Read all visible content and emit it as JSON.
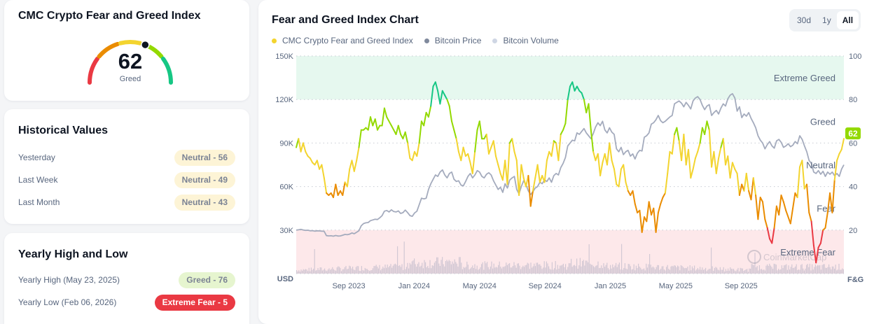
{
  "index_card": {
    "title": "CMC Crypto Fear and Greed Index",
    "value": "62",
    "value_num": 62,
    "label": "Greed",
    "gauge_colors": [
      "#ea3943",
      "#ea8c00",
      "#f3d42f",
      "#93d900",
      "#16c784"
    ]
  },
  "historical": {
    "title": "Historical Values",
    "rows": [
      {
        "label": "Yesterday",
        "badge": "Neutral - 56",
        "class": "neutral"
      },
      {
        "label": "Last Week",
        "badge": "Neutral - 49",
        "class": "neutral"
      },
      {
        "label": "Last Month",
        "badge": "Neutral - 43",
        "class": "neutral"
      }
    ]
  },
  "yearly": {
    "title": "Yearly High and Low",
    "rows": [
      {
        "label": "Yearly High",
        "date": "(May 23, 2025)",
        "badge": "Greed - 76",
        "class": "greed"
      },
      {
        "label": "Yearly Low",
        "date": "(Feb 06, 2026)",
        "badge": "Extreme Fear - 5",
        "class": "xfear"
      }
    ]
  },
  "chart_panel": {
    "title": "Fear and Greed Index Chart",
    "legend": [
      {
        "label": "CMC Crypto Fear and Greed Index",
        "color": "#f3d42f"
      },
      {
        "label": "Bitcoin Price",
        "color": "#808a9d"
      },
      {
        "label": "Bitcoin Volume",
        "color": "#cfd6e4"
      }
    ],
    "ranges": [
      {
        "label": "30d",
        "active": false
      },
      {
        "label": "1y",
        "active": false
      },
      {
        "label": "All",
        "active": true
      }
    ],
    "watermark": "CoinMarketCap"
  },
  "chart_data": {
    "type": "line",
    "title": "Fear and Greed Index Chart",
    "x_start": "2023-06",
    "x_end": "2026-02",
    "x_ticks": [
      "Sep 2023",
      "Jan 2024",
      "May 2024",
      "Sep 2024",
      "Jan 2025",
      "May 2025",
      "Sep 2025"
    ],
    "y_left": {
      "label": "USD",
      "ticks": [
        "150K",
        "120K",
        "90K",
        "60K",
        "30K"
      ],
      "range": [
        0,
        150000
      ]
    },
    "y_right": {
      "label": "F&G",
      "ticks": [
        "100",
        "80",
        "60",
        "40",
        "20"
      ],
      "range": [
        0,
        100
      ]
    },
    "zones": [
      {
        "label": "Extreme Greed",
        "from": 80,
        "to": 100,
        "color": "#e6f8ef"
      },
      {
        "label": "Greed",
        "from": 60,
        "to": 80
      },
      {
        "label": "Neutral",
        "from": 40,
        "to": 60
      },
      {
        "label": "Fear",
        "from": 20,
        "to": 40
      },
      {
        "label": "Extreme Fear",
        "from": 0,
        "to": 20,
        "color": "#fde8ea"
      }
    ],
    "current_badge": "62",
    "grid": true,
    "legend_position": "top-left",
    "series": [
      {
        "name": "CMC Crypto Fear and Greed Index",
        "axis": "right",
        "values": [
          58,
          62,
          56,
          60,
          56,
          54,
          53,
          51,
          50,
          52,
          48,
          50,
          44,
          37,
          36,
          37,
          35,
          41,
          36,
          38,
          36,
          42,
          40,
          48,
          52,
          47,
          52,
          58,
          66,
          66,
          67,
          66,
          72,
          68,
          71,
          66,
          68,
          68,
          76,
          72,
          70,
          68,
          66,
          64,
          68,
          64,
          62,
          65,
          60,
          53,
          52,
          56,
          54,
          60,
          70,
          68,
          74,
          72,
          77,
          86,
          88,
          84,
          78,
          84,
          82,
          80,
          77,
          70,
          66,
          62,
          56,
          52,
          58,
          54,
          55,
          51,
          46,
          56,
          66,
          70,
          62,
          62,
          64,
          55,
          58,
          61,
          54,
          50,
          46,
          43,
          52,
          41,
          60,
          62,
          56,
          52,
          36,
          50,
          44,
          40,
          45,
          31,
          38,
          44,
          50,
          42,
          45,
          42,
          52,
          56,
          54,
          61,
          60,
          52,
          64,
          66,
          69,
          80,
          86,
          88,
          84,
          86,
          84,
          83,
          80,
          74,
          78,
          66,
          56,
          52,
          55,
          45,
          51,
          55,
          50,
          60,
          52,
          48,
          41,
          40,
          48,
          50,
          42,
          38,
          36,
          38,
          32,
          28,
          29,
          19,
          26,
          24,
          33,
          27,
          30,
          19,
          28,
          32,
          35,
          37,
          46,
          56,
          55,
          64,
          67,
          61,
          52,
          64,
          50,
          57,
          44,
          48,
          53,
          56,
          60,
          67,
          64,
          70,
          66,
          49,
          56,
          46,
          53,
          58,
          62,
          50,
          54,
          44,
          51,
          48,
          46,
          36,
          41,
          38,
          46,
          38,
          34,
          44,
          36,
          25,
          35,
          33,
          25,
          21,
          16,
          14,
          21,
          31,
          27,
          36,
          33,
          29,
          26,
          23,
          30,
          37,
          35,
          49,
          52,
          39,
          41,
          28,
          24,
          13,
          5,
          12,
          14,
          20,
          21,
          28,
          37,
          28,
          43,
          52,
          55,
          57,
          62
        ]
      },
      {
        "name": "Bitcoin Price",
        "axis": "left",
        "values": [
          30000,
          30200,
          30500,
          30100,
          29800,
          29900,
          29500,
          29600,
          29300,
          29500,
          29400,
          29300,
          29200,
          26200,
          26000,
          26100,
          25800,
          26300,
          25900,
          26000,
          26500,
          27000,
          26800,
          27200,
          28000,
          27500,
          28500,
          29500,
          33000,
          34500,
          35000,
          35200,
          36500,
          37000,
          37500,
          37300,
          38500,
          40000,
          43000,
          43500,
          42500,
          44000,
          42800,
          42500,
          43200,
          41500,
          42000,
          43800,
          42000,
          40000,
          39500,
          41800,
          43000,
          47500,
          52000,
          51500,
          52000,
          58000,
          62000,
          65000,
          68000,
          67000,
          70000,
          71500,
          68000,
          66000,
          69000,
          70000,
          65000,
          63500,
          64000,
          61000,
          60500,
          63500,
          67000,
          69000,
          66000,
          68000,
          71000,
          70000,
          67000,
          66000,
          68500,
          69500,
          68000,
          64000,
          61000,
          58000,
          59500,
          56000,
          62000,
          59000,
          64500,
          66000,
          67000,
          58000,
          55000,
          60000,
          64000,
          61500,
          57000,
          54500,
          56500,
          59000,
          60000,
          63000,
          62000,
          64500,
          63500,
          66000,
          63000,
          67500,
          69000,
          68000,
          73000,
          76000,
          80000,
          88000,
          90000,
          92000,
          91500,
          97000,
          96000,
          98000,
          100000,
          97000,
          95000,
          93000,
          96500,
          101000,
          104000,
          102000,
          105000,
          99000,
          97000,
          100500,
          97500,
          96000,
          86000,
          84000,
          87000,
          82000,
          84000,
          85000,
          81000,
          82500,
          79000,
          83000,
          85000,
          84500,
          94000,
          95000,
          97000,
          103000,
          104000,
          106000,
          109000,
          105500,
          104000,
          105000,
          106500,
          108000,
          109000,
          117000,
          118000,
          119000,
          117500,
          115000,
          118000,
          116000,
          113500,
          119000,
          121000,
          122000,
          120000,
          116000,
          113000,
          115500,
          116500,
          109000,
          111000,
          112500,
          110000,
          114000,
          117000,
          115500,
          120500,
          123000,
          124000,
          121000,
          112000,
          115000,
          107500,
          110000,
          108500,
          111000,
          107000,
          104000,
          100500,
          95000,
          92000,
          90000,
          86000,
          89000,
          91000,
          88000,
          86500,
          91500,
          92500,
          90500,
          87000,
          88000,
          89500,
          87500,
          88500,
          91000,
          89500,
          95000,
          92500,
          88000,
          84000,
          78000,
          76000,
          70000,
          69000,
          71000,
          68500,
          70500,
          67000,
          70000,
          68500,
          70000,
          67500,
          69000,
          67000,
          72000,
          75000
        ]
      },
      {
        "name": "Bitcoin Volume",
        "axis": "left",
        "note": "relative bars near bottom of plot",
        "values": []
      }
    ]
  }
}
